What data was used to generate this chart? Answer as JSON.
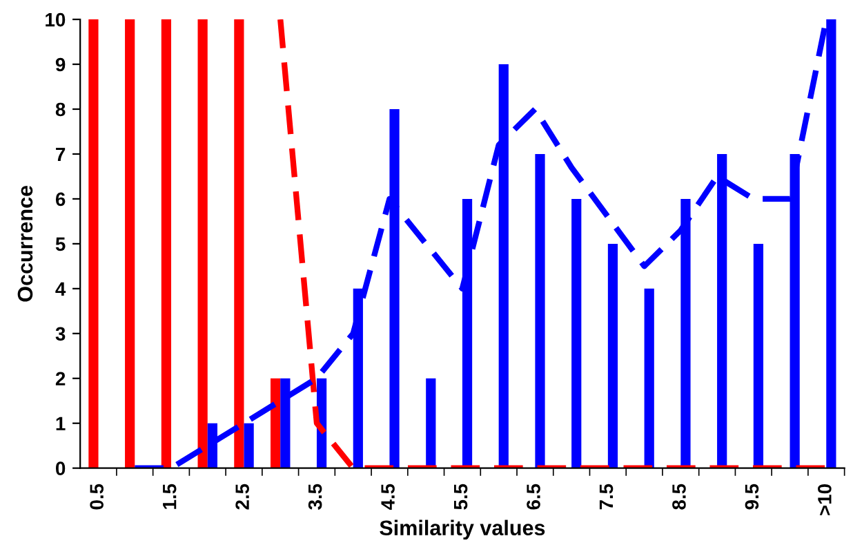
{
  "chart_data": {
    "type": "bar",
    "xlabel": "Similarity values",
    "ylabel": "Occurrence",
    "categories": [
      "0.5",
      null,
      "1.5",
      null,
      "2.5",
      null,
      "3.5",
      null,
      "4.5",
      null,
      "5.5",
      null,
      "6.5",
      null,
      "7.5",
      null,
      "8.5",
      null,
      "9.5",
      null,
      ">10"
    ],
    "series": [
      {
        "color": "#ff0000",
        "values": [
          10,
          10,
          10,
          10,
          10,
          2,
          0,
          0,
          0,
          0,
          0,
          0,
          0,
          0,
          0,
          0,
          0,
          0,
          0,
          0,
          0
        ]
      },
      {
        "color": "#0000ff",
        "values": [
          0,
          0,
          0,
          1,
          1,
          2,
          2,
          4,
          8,
          2,
          6,
          9,
          7,
          6,
          5,
          4,
          6,
          7,
          5,
          7,
          10
        ]
      },
      {
        "type": "line",
        "line_style": "dashed",
        "color": "#ff0000",
        "values": [
          null,
          null,
          null,
          null,
          null,
          10,
          1,
          0,
          0,
          0,
          0,
          0,
          0,
          0,
          0,
          0,
          0,
          0,
          0,
          0,
          0
        ]
      },
      {
        "type": "line",
        "line_style": "dashed",
        "color": "#0000ff",
        "values": [
          null,
          0,
          0,
          0.5,
          1,
          1.5,
          2,
          3,
          6,
          5,
          4,
          7.2,
          8,
          6.7,
          5.6,
          4.5,
          5.3,
          6.5,
          6,
          6,
          10
        ]
      }
    ],
    "ylim": [
      0,
      10
    ],
    "yticks": [
      0,
      1,
      2,
      3,
      4,
      5,
      6,
      7,
      8,
      9,
      10
    ],
    "grid": false,
    "legend": false
  }
}
